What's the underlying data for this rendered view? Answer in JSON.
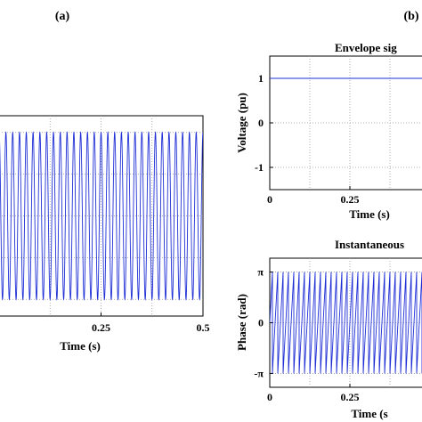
{
  "panel_labels": {
    "a": "(a)",
    "b": "(b)"
  },
  "chart_data": [
    {
      "id": "a",
      "type": "line",
      "title": "",
      "xlabel": "Time (s)",
      "ylabel": "",
      "xlim": [
        0,
        0.5
      ],
      "ylim": [
        -1.2,
        1.2
      ],
      "grid": true,
      "x_ticks": [
        {
          "value": 0.25,
          "label": "0.25"
        },
        {
          "value": 0.5,
          "label": "0.5"
        }
      ],
      "y_ticks": [],
      "series": [
        {
          "color": "#1f2fd6",
          "kind": "sine",
          "amplitude": 1.0,
          "frequency_hz": 60,
          "t_start": 0,
          "t_end": 0.5
        }
      ]
    },
    {
      "id": "b1",
      "type": "line",
      "title": "Envelope sig",
      "xlabel": "Time (s)",
      "ylabel": "Voltage (pu)",
      "xlim": [
        0,
        0.5
      ],
      "ylim": [
        -1.5,
        1.5
      ],
      "grid": true,
      "x_ticks": [
        {
          "value": 0,
          "label": "0"
        },
        {
          "value": 0.25,
          "label": "0.25"
        }
      ],
      "y_ticks": [
        {
          "value": 1,
          "label": "1"
        },
        {
          "value": 0,
          "label": "0"
        },
        {
          "value": -1,
          "label": "-1"
        }
      ],
      "series": [
        {
          "color": "#1f2fd6",
          "kind": "constant",
          "value": 1,
          "t_start": 0,
          "t_end": 0.5
        }
      ]
    },
    {
      "id": "b2",
      "type": "line",
      "title": "Instantaneous",
      "xlabel": "Time (s",
      "ylabel": "Phase (rad)",
      "xlim": [
        0,
        0.5
      ],
      "ylim": [
        -4.0,
        4.0
      ],
      "grid": true,
      "x_ticks": [
        {
          "value": 0,
          "label": "0"
        },
        {
          "value": 0.25,
          "label": "0.25"
        }
      ],
      "y_ticks": [
        {
          "value": 3.14159,
          "label": "π"
        },
        {
          "value": 0,
          "label": "0"
        },
        {
          "value": -3.14159,
          "label": "-π"
        }
      ],
      "series": [
        {
          "color": "#1f2fd6",
          "kind": "sawtooth",
          "min": -3.14159,
          "max": 3.14159,
          "frequency_hz": 60,
          "t_start": 0,
          "t_end": 0.5
        }
      ]
    }
  ]
}
